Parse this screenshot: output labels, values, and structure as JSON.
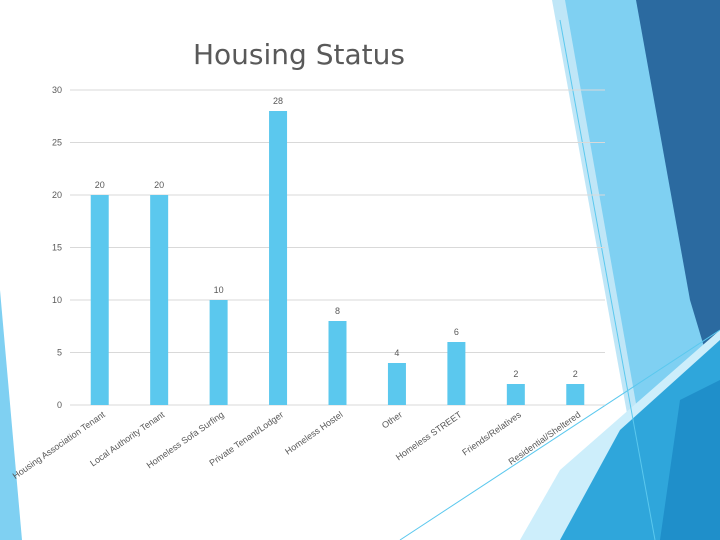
{
  "slide": {
    "title": "Housing Status"
  },
  "colors": {
    "bar": "#5bc8ee",
    "axis_text": "#595959",
    "gridline": "#d9d9d9",
    "deco_dark": "#2b6aa0",
    "deco_mid": "#2fa6db",
    "deco_light": "#7fd0f2"
  },
  "chart_data": {
    "type": "bar",
    "title": "Housing Status",
    "xlabel": "",
    "ylabel": "",
    "ylim": [
      0,
      30
    ],
    "yticks": [
      0,
      5,
      10,
      15,
      20,
      25,
      30
    ],
    "grid": true,
    "legend": "none",
    "categories": [
      "Housing Association Tenant",
      "Local Authority Tenant",
      "Homeless Sofa Surfing",
      "Private Tenant/Lodger",
      "Homeless Hostel",
      "Other",
      "Homeless STREET",
      "Friends/Relatives",
      "Residential/Sheltered"
    ],
    "values": [
      20,
      20,
      10,
      28,
      8,
      4,
      6,
      2,
      2
    ],
    "data_labels": [
      "20",
      "20",
      "10",
      "28",
      "8",
      "4",
      "6",
      "2",
      "2"
    ]
  }
}
